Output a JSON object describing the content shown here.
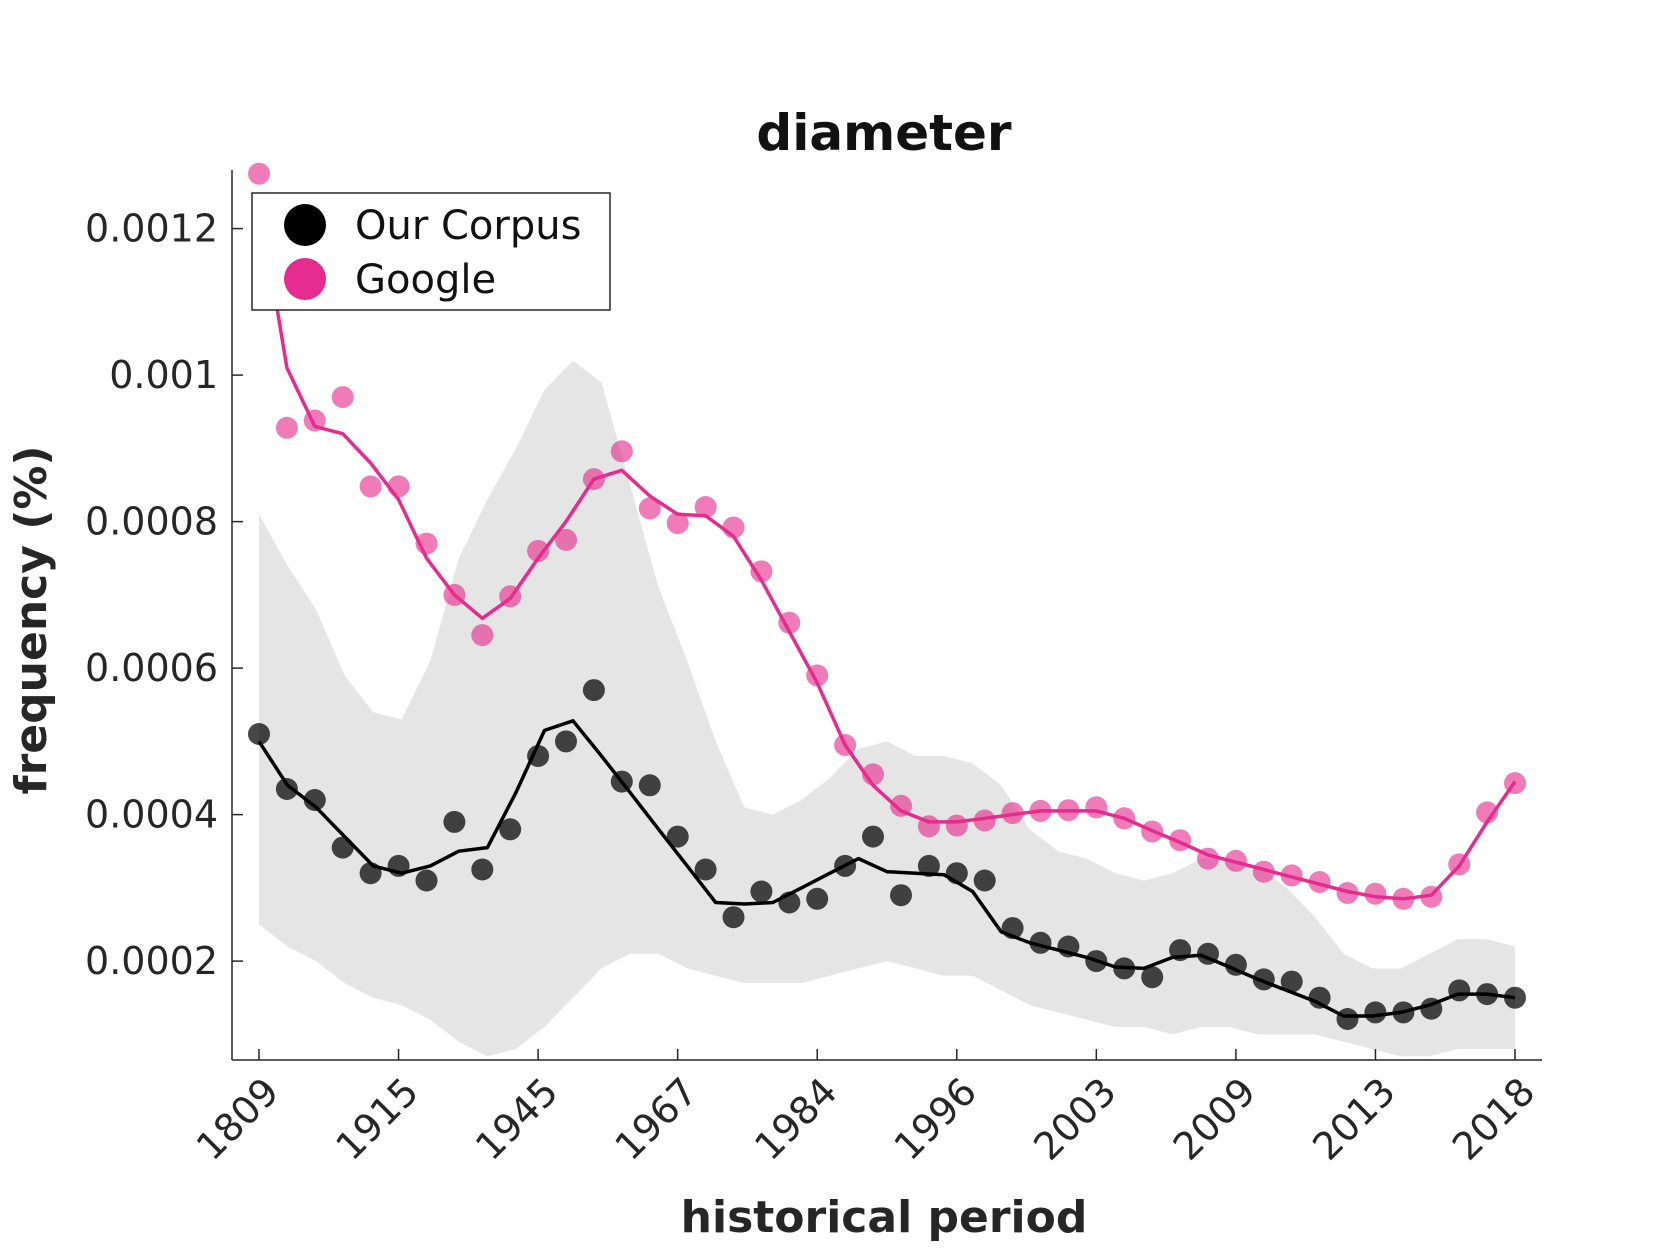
{
  "chart_data": {
    "type": "scatter",
    "title": "diameter",
    "xlabel": "historical period",
    "ylabel": "frequency (%)",
    "categories": [
      "1809",
      "1915",
      "1945",
      "1967",
      "1984",
      "1996",
      "2003",
      "2009",
      "2013",
      "2018"
    ],
    "ylim": [
      6.5e-05,
      0.00128
    ],
    "yticks": [
      0.0002,
      0.0004,
      0.0006,
      0.0008,
      0.001,
      0.0012
    ],
    "ytick_labels": [
      "0.0002",
      "0.0004",
      "0.0006",
      "0.0008",
      "0.001",
      "0.0012"
    ],
    "grid": false,
    "legend": {
      "position": "top-left",
      "entries": [
        "Our Corpus",
        "Google"
      ]
    },
    "colors": {
      "corpus": "#000000",
      "google": "#e52b8d",
      "band": "#e5e5e5"
    },
    "band": {
      "upper": [
        0.00081,
        0.00074,
        0.00068,
        0.00059,
        0.00054,
        0.00053,
        0.00061,
        0.00075,
        0.00083,
        0.0009,
        0.00098,
        0.00102,
        0.00099,
        0.00085,
        0.00071,
        0.00061,
        0.0005,
        0.00041,
        0.0004,
        0.00042,
        0.00045,
        0.00049,
        0.0005,
        0.00048,
        0.00048,
        0.00047,
        0.00044,
        0.00038,
        0.00035,
        0.00034,
        0.00032,
        0.00031,
        0.00032,
        0.00034,
        0.00034,
        0.00033,
        0.0003,
        0.00026,
        0.00021,
        0.00019,
        0.00019,
        0.00021,
        0.00023,
        0.00023,
        0.00022
      ],
      "lower": [
        0.00025,
        0.00022,
        0.0002,
        0.00017,
        0.00015,
        0.00014,
        0.00012,
        9e-05,
        7e-05,
        8e-05,
        0.00011,
        0.00015,
        0.00019,
        0.00021,
        0.00021,
        0.00019,
        0.00018,
        0.00017,
        0.00017,
        0.00017,
        0.00018,
        0.00019,
        0.0002,
        0.00019,
        0.00018,
        0.00018,
        0.00016,
        0.00014,
        0.00013,
        0.00012,
        0.00011,
        0.00011,
        0.0001,
        0.00011,
        0.00011,
        0.0001,
        0.0001,
        0.0001,
        9e-05,
        8e-05,
        7e-05,
        7e-05,
        8e-05,
        8e-05,
        8e-05
      ]
    },
    "series": [
      {
        "name": "Our Corpus",
        "points": [
          0.00051,
          0.000435,
          0.00042,
          0.000355,
          0.00032,
          0.00033,
          0.00031,
          0.00039,
          0.000325,
          0.00038,
          0.00048,
          0.0005,
          0.00057,
          0.000445,
          0.00044,
          0.00037,
          0.000325,
          0.00026,
          0.000295,
          0.00028,
          0.000285,
          0.00033,
          0.00037,
          0.00029,
          0.00033,
          0.00032,
          0.00031,
          0.000245,
          0.000225,
          0.00022,
          0.0002,
          0.00019,
          0.000178,
          0.000215,
          0.00021,
          0.000195,
          0.000175,
          0.000172,
          0.00015,
          0.000121,
          0.00013,
          0.00013,
          0.000135,
          0.00016,
          0.000155,
          0.00015
        ],
        "line": [
          0.0005,
          0.00044,
          0.00041,
          0.00037,
          0.00033,
          0.00032,
          0.00033,
          0.00035,
          0.000355,
          0.00043,
          0.000515,
          0.000528,
          0.00048,
          0.00043,
          0.00038,
          0.00033,
          0.00028,
          0.000278,
          0.00028,
          0.0003,
          0.00032,
          0.00034,
          0.000322,
          0.00032,
          0.000318,
          0.000295,
          0.00024,
          0.000225,
          0.000215,
          0.000205,
          0.000192,
          0.00019,
          0.000205,
          0.000208,
          0.000192,
          0.000175,
          0.00016,
          0.000145,
          0.000125,
          0.000125,
          0.00013,
          0.00014,
          0.000155,
          0.000155,
          0.00015
        ]
      },
      {
        "name": "Google",
        "points": [
          0.001275,
          0.000928,
          0.000938,
          0.00097,
          0.000848,
          0.000848,
          0.00077,
          0.0007,
          0.000645,
          0.000698,
          0.00076,
          0.000775,
          0.000858,
          0.000896,
          0.000818,
          0.000798,
          0.00082,
          0.000792,
          0.000732,
          0.000662,
          0.00059,
          0.000495,
          0.000455,
          0.000412,
          0.000384,
          0.000385,
          0.000392,
          0.000402,
          0.000405,
          0.000406,
          0.00041,
          0.000395,
          0.000377,
          0.000365,
          0.00034,
          0.000337,
          0.000322,
          0.000317,
          0.000308,
          0.000293,
          0.000292,
          0.000285,
          0.000288,
          0.000332,
          0.000403,
          0.000443
        ],
        "line": [
          0.00124,
          0.00101,
          0.00093,
          0.00092,
          0.00088,
          0.00083,
          0.00075,
          0.0007,
          0.000668,
          0.000695,
          0.00075,
          0.0008,
          0.000858,
          0.00087,
          0.000835,
          0.00081,
          0.000808,
          0.00078,
          0.00072,
          0.00065,
          0.00058,
          0.000495,
          0.00044,
          0.000405,
          0.00039,
          0.00039,
          0.000395,
          0.0004,
          0.000405,
          0.000405,
          0.000405,
          0.000395,
          0.000378,
          0.000362,
          0.000345,
          0.000335,
          0.000325,
          0.000315,
          0.000305,
          0.000295,
          0.000288,
          0.000285,
          0.00029,
          0.00033,
          0.00039,
          0.000445
        ]
      }
    ]
  }
}
